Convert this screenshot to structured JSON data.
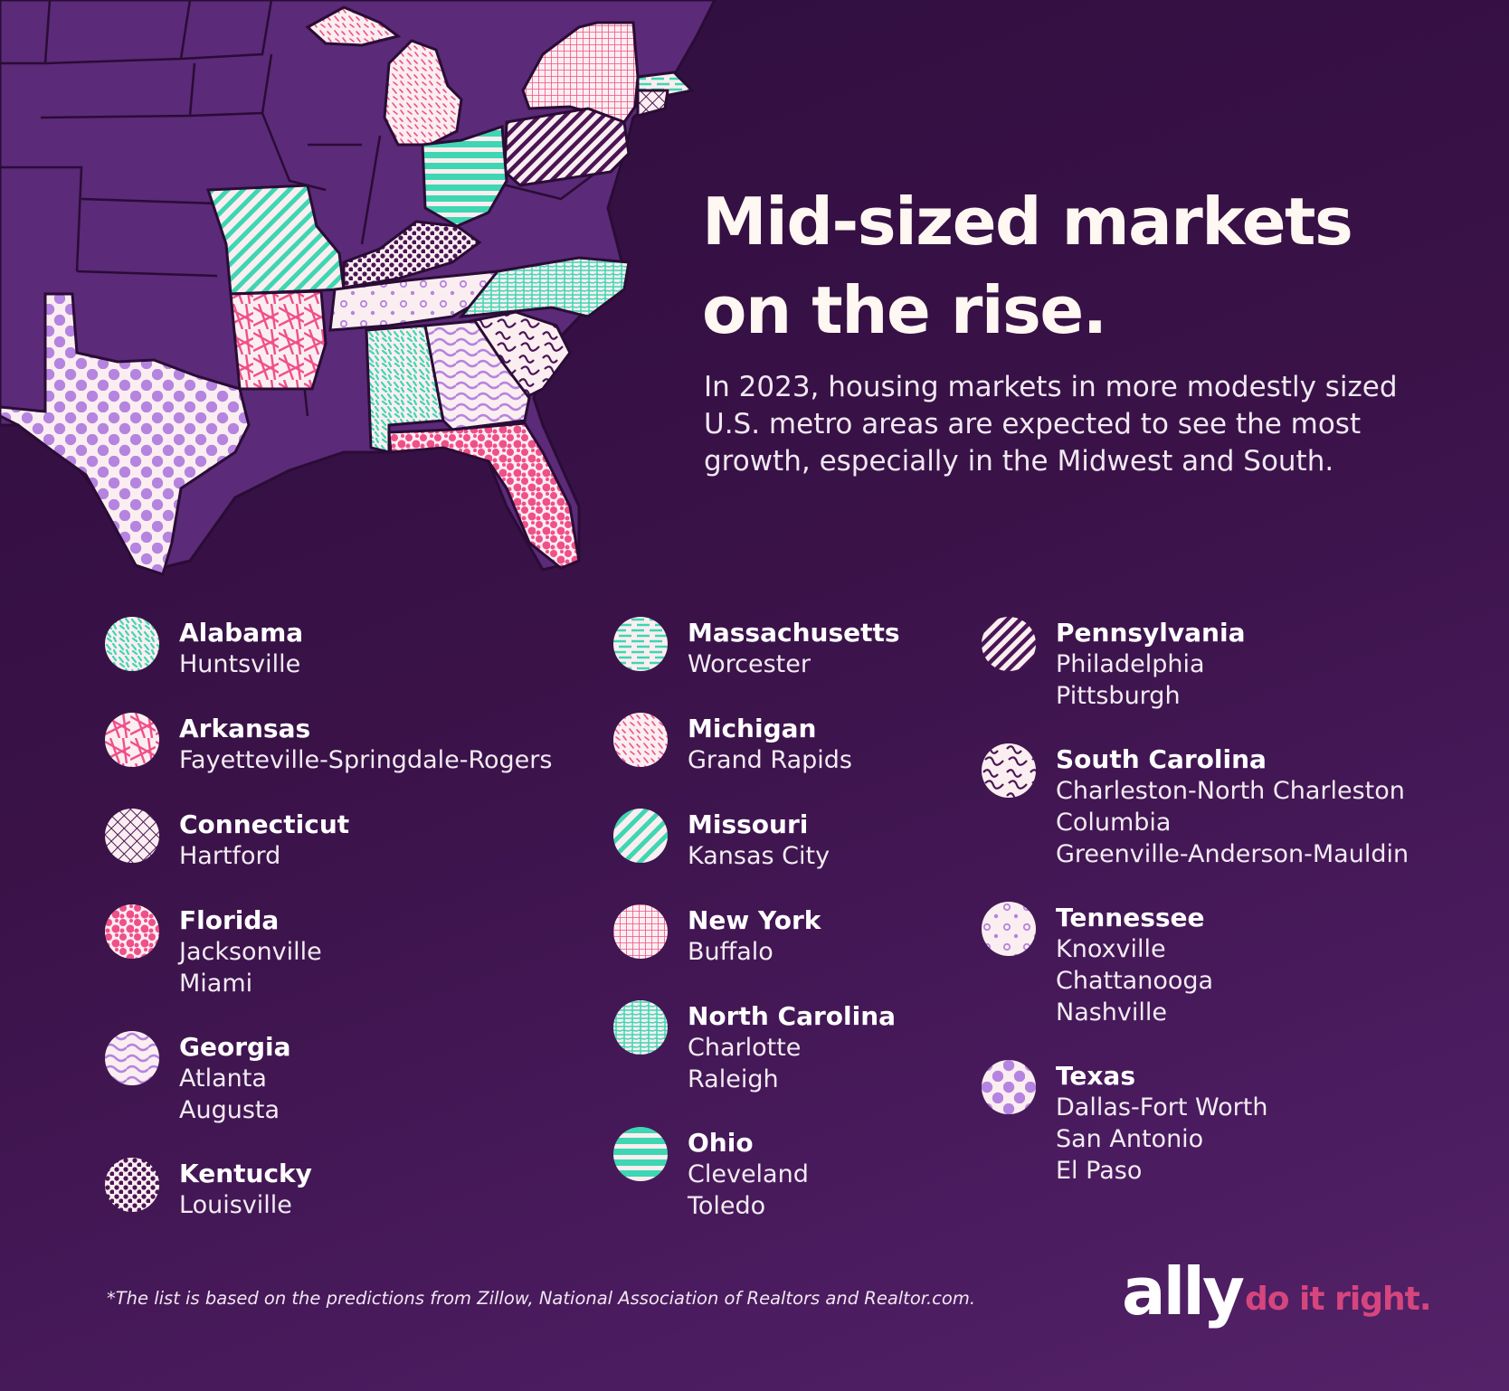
{
  "title_line1": "Mid-sized markets",
  "title_line2": "on the rise.",
  "subtitle": "In 2023, housing markets in more modestly sized U.S. metro areas are expected to see the most growth, especially in the Midwest and South.",
  "legend": {
    "alabama": {
      "state": "Alabama",
      "cities": [
        "Huntsville"
      ]
    },
    "arkansas": {
      "state": "Arkansas",
      "cities": [
        "Fayetteville-Springdale-Rogers"
      ]
    },
    "connecticut": {
      "state": "Connecticut",
      "cities": [
        "Hartford"
      ]
    },
    "florida": {
      "state": "Florida",
      "cities": [
        "Jacksonville",
        "Miami"
      ]
    },
    "georgia": {
      "state": "Georgia",
      "cities": [
        "Atlanta",
        "Augusta"
      ]
    },
    "kentucky": {
      "state": "Kentucky",
      "cities": [
        "Louisville"
      ]
    },
    "massachusetts": {
      "state": "Massachusetts",
      "cities": [
        "Worcester"
      ]
    },
    "michigan": {
      "state": "Michigan",
      "cities": [
        "Grand Rapids"
      ]
    },
    "missouri": {
      "state": "Missouri",
      "cities": [
        "Kansas City"
      ]
    },
    "new_york": {
      "state": "New York",
      "cities": [
        "Buffalo"
      ]
    },
    "north_carolina": {
      "state": "North Carolina",
      "cities": [
        "Charlotte",
        "Raleigh"
      ]
    },
    "ohio": {
      "state": "Ohio",
      "cities": [
        "Cleveland",
        "Toledo"
      ]
    },
    "pennsylvania": {
      "state": "Pennsylvania",
      "cities": [
        "Philadelphia",
        "Pittsburgh"
      ]
    },
    "south_carolina": {
      "state": "South Carolina",
      "cities": [
        "Charleston-North Charleston",
        "Columbia",
        "Greenville-Anderson-Mauldin"
      ]
    },
    "tennessee": {
      "state": "Tennessee",
      "cities": [
        "Knoxville",
        "Chattanooga",
        "Nashville"
      ]
    },
    "texas": {
      "state": "Texas",
      "cities": [
        "Dallas-Fort Worth",
        "San Antonio",
        "El Paso"
      ]
    }
  },
  "footnote": "*The list is based on the predictions from Zillow, National Association of Realtors and Realtor.com.",
  "brand": {
    "logo": "ally",
    "tagline": "do it right."
  },
  "colors": {
    "background": "#3a1248",
    "map_base": "#5b2a78",
    "teal": "#3ed6b3",
    "pink": "#f0508a",
    "light_purple": "#b584e0",
    "cream": "#fbeef0",
    "dark_purple": "#4a1555",
    "tagline": "#d6457e"
  }
}
